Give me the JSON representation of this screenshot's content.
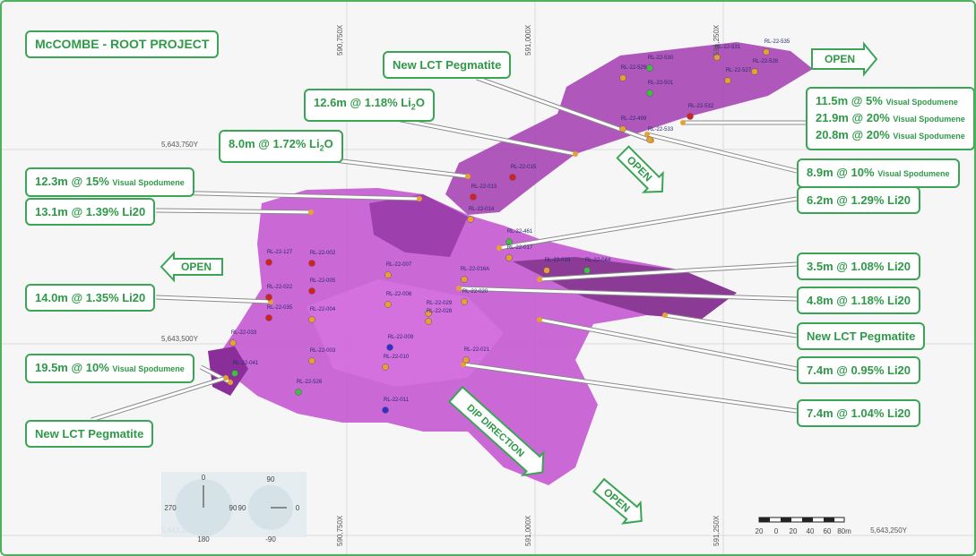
{
  "title": "McCOMBE - ROOT PROJECT",
  "callouts": [
    {
      "lines": [
        {
          "text": "New LCT Pegmatite"
        }
      ]
    },
    {
      "lines": [
        {
          "text": "12.6m @ 1.18% Li",
          "sub": "2",
          "tail": "O"
        }
      ]
    },
    {
      "lines": [
        {
          "text": "8.0m @ 1.72% Li",
          "sub": "2",
          "tail": "O"
        }
      ]
    },
    {
      "lines": [
        {
          "text": "12.3m @ 15%",
          "small": "Visual Spodumene"
        }
      ]
    },
    {
      "lines": [
        {
          "text": "13.1m @ 1.39% Li20"
        }
      ]
    },
    {
      "lines": [
        {
          "text": "14.0m @ 1.35% Li20"
        }
      ]
    },
    {
      "lines": [
        {
          "text": "19.5m @ 10%",
          "small": "Visual Spodumene"
        }
      ]
    },
    {
      "lines": [
        {
          "text": "New LCT Pegmatite"
        }
      ]
    },
    {
      "lines": [
        {
          "text": "11.5m @ 5%",
          "small": "Visual Spodumene"
        },
        {
          "text": "21.9m @ 20%",
          "small": "Visual Spodumene"
        },
        {
          "text": "20.8m @ 20%",
          "small": "Visual Spodumene"
        }
      ]
    },
    {
      "lines": [
        {
          "text": "8.9m @ 10%",
          "small": "Visual Spodumene"
        }
      ]
    },
    {
      "lines": [
        {
          "text": "6.2m @ 1.29% Li20"
        }
      ]
    },
    {
      "lines": [
        {
          "text": "3.5m @ 1.08% Li20"
        }
      ]
    },
    {
      "lines": [
        {
          "text": "4.8m @ 1.18% Li20"
        }
      ]
    },
    {
      "lines": [
        {
          "text": "New LCT Pegmatite"
        }
      ]
    },
    {
      "lines": [
        {
          "text": "7.4m @ 0.95% Li20"
        }
      ]
    },
    {
      "lines": [
        {
          "text": "7.4m @ 1.04% Li20"
        }
      ]
    }
  ],
  "arrows": [
    "OPEN",
    "OPEN",
    "OPEN",
    "OPEN",
    "DIP DIRECTION"
  ],
  "grid": {
    "eastings": [
      "590,750X",
      "591,000X",
      "591,250X"
    ],
    "northings": [
      "5,643,750Y",
      "5,643,500Y",
      "5,643,250Y"
    ]
  },
  "compass": [
    "0",
    "270",
    "90",
    "180",
    "90",
    "90",
    "0",
    "-90"
  ],
  "scale": [
    "20",
    "0",
    "20",
    "40",
    "60",
    "80m"
  ],
  "drillholes": [
    "RL-22-535",
    "RL-22-531",
    "RL-22-530",
    "RL-22-529",
    "RL-22-527",
    "RL-22-526",
    "RL-22-501",
    "RL-22-499",
    "RL-22-533",
    "RL-22-532",
    "RL-22-015",
    "RL-22-013",
    "RL-22-014",
    "RL-22-461",
    "RL-22-017",
    "RL-22-019",
    "RL-22-044",
    "RL-22-016A",
    "RL-22-020",
    "RL-22-007",
    "RL-22-008",
    "RL-22-029",
    "RL-22-028",
    "RL-22-009",
    "RL-22-021",
    "RL-22-010",
    "RL-22-003",
    "RL-22-011",
    "RL-22-526",
    "RL-22-004",
    "RL-22-005",
    "RL-22-002",
    "RL-22-127",
    "RL-22-022",
    "RL-22-035",
    "RL-22-033",
    "RL-22-041"
  ]
}
